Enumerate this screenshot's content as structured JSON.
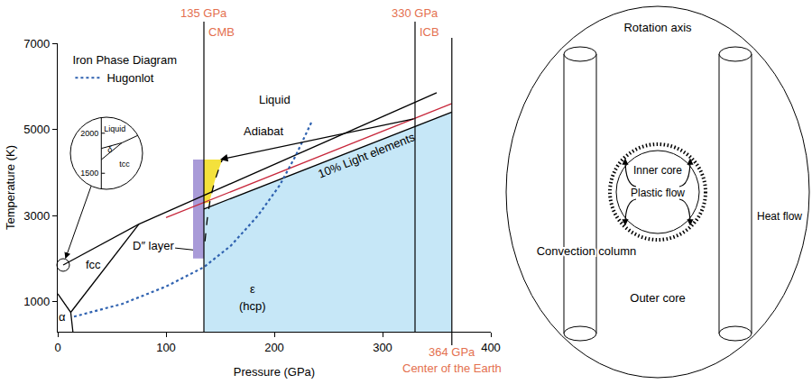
{
  "chart_data": {
    "type": "line",
    "x_label": "Pressure (GPa)",
    "y_label": "Temperature (K)",
    "xlim": [
      0,
      400
    ],
    "xticks": [
      0,
      100,
      200,
      300,
      400
    ],
    "ylim": [
      300,
      7000
    ],
    "yticks": [
      1000,
      3000,
      5000,
      7000
    ],
    "grid": false,
    "legend": "top left",
    "legend_title": "Iron Phase Diagram",
    "series": [
      {
        "type": "area",
        "color": "#c6e7f7",
        "x": [
          135,
          135,
          364,
          364
        ],
        "values": [
          300,
          3150,
          5400,
          300
        ]
      },
      {
        "type": "area",
        "color": "#a99bd8",
        "x": [
          125,
          135,
          135,
          125
        ],
        "values": [
          2000,
          2000,
          4300,
          4300
        ]
      },
      {
        "type": "area",
        "color": "#f4e13c",
        "x": [
          135,
          135,
          152,
          149,
          145,
          141,
          140
        ],
        "values": [
          3280,
          4300,
          4300,
          4100,
          3800,
          3400,
          3300
        ]
      },
      {
        "color": "#000000",
        "line_style": "solid",
        "x": [
          135,
          364
        ],
        "values": [
          3150,
          5400
        ]
      },
      {
        "color": "#000000",
        "line_style": "dash",
        "x": [
          136,
          138,
          141,
          145,
          149,
          152
        ],
        "values": [
          2400,
          2900,
          3400,
          3800,
          4100,
          4300
        ]
      },
      {
        "color": "#c8283c",
        "line_style": "solid",
        "x": [
          100,
          364
        ],
        "values": [
          2950,
          5600
        ],
        "label": {
          "text": "10% Light elements",
          "x": 285,
          "y": 4400
        }
      },
      {
        "color": "#000000",
        "line_style": "solid",
        "x": [
          75,
          350
        ],
        "values": [
          2800,
          5850
        ]
      },
      {
        "color": "#000000",
        "line_style": "solid",
        "x": [
          5,
          75
        ],
        "values": [
          1850,
          2800
        ]
      },
      {
        "color": "#000000",
        "line_style": "solid",
        "x": [
          12,
          75
        ],
        "values": [
          750,
          2800
        ]
      },
      {
        "color": "#000000",
        "line_style": "solid",
        "x": [
          0,
          12,
          14
        ],
        "values": [
          1180,
          750,
          300
        ]
      },
      {
        "name": "Hugonlot",
        "color": "#2f62b0",
        "line_style": "dot",
        "x": [
          15,
          30,
          60,
          100,
          135,
          160,
          185,
          205,
          220,
          235
        ],
        "values": [
          650,
          750,
          950,
          1350,
          1800,
          2300,
          3000,
          3700,
          4400,
          5200
        ]
      },
      {
        "color": "#000000",
        "marker": "arrow",
        "x": [
          330,
          150
        ],
        "values": [
          5250,
          4300
        ]
      }
    ],
    "boundaries": [
      {
        "x": 135,
        "position": "top",
        "color": "#e4704f",
        "labels": [
          "135 GPa",
          "CMB"
        ]
      },
      {
        "x": 330,
        "position": "top",
        "color": "#e4704f",
        "labels": [
          "330 GPa",
          "ICB"
        ]
      },
      {
        "x": 364,
        "position": "bottom",
        "color": "#e4704f",
        "labels": [
          "364 GPa",
          "Center of the Earth"
        ]
      }
    ],
    "annotations": [
      {
        "text": "Liquid",
        "x": 200,
        "y": 5700
      },
      {
        "text": "Adiabat",
        "x": 190,
        "y": 4950
      },
      {
        "text": "fcc",
        "x": 33,
        "y": 1850
      },
      {
        "text": "α",
        "x": 4,
        "y": 650
      },
      {
        "text": "ε",
        "x": 180,
        "y": 1300
      },
      {
        "text": "(hcp)",
        "x": 180,
        "y": 900
      },
      {
        "text": "D″ layer",
        "x": 88,
        "y": 2300,
        "target": [
          125,
          2200
        ]
      }
    ],
    "inset": {
      "focus": {
        "x": 5,
        "y": 1850
      },
      "xlim": [
        -6,
        8
      ],
      "ylim": [
        1300,
        2200
      ],
      "yticks": [
        1500,
        2000
      ],
      "lines": [
        {
          "x": [
            0,
            4
          ],
          "values": [
            1810,
            1880
          ]
        },
        {
          "x": [
            0,
            4
          ],
          "values": [
            1670,
            1880
          ]
        },
        {
          "x": [
            4,
            8
          ],
          "values": [
            1880,
            2000
          ]
        }
      ],
      "labels": [
        {
          "text": "Liquid",
          "x": 0.5,
          "y": 2050
        },
        {
          "text": "δ",
          "x": 1.2,
          "y": 1790
        },
        {
          "text": "tcc",
          "x": 3.5,
          "y": 1620
        }
      ]
    }
  },
  "diagram": {
    "rotation_axis": "Rotation axis",
    "inner_core": "Inner core",
    "plastic_flow": "Plastic flow",
    "convection_column": "Convection column",
    "heat_flow": "Heat flow",
    "outer_core": "Outer core"
  }
}
